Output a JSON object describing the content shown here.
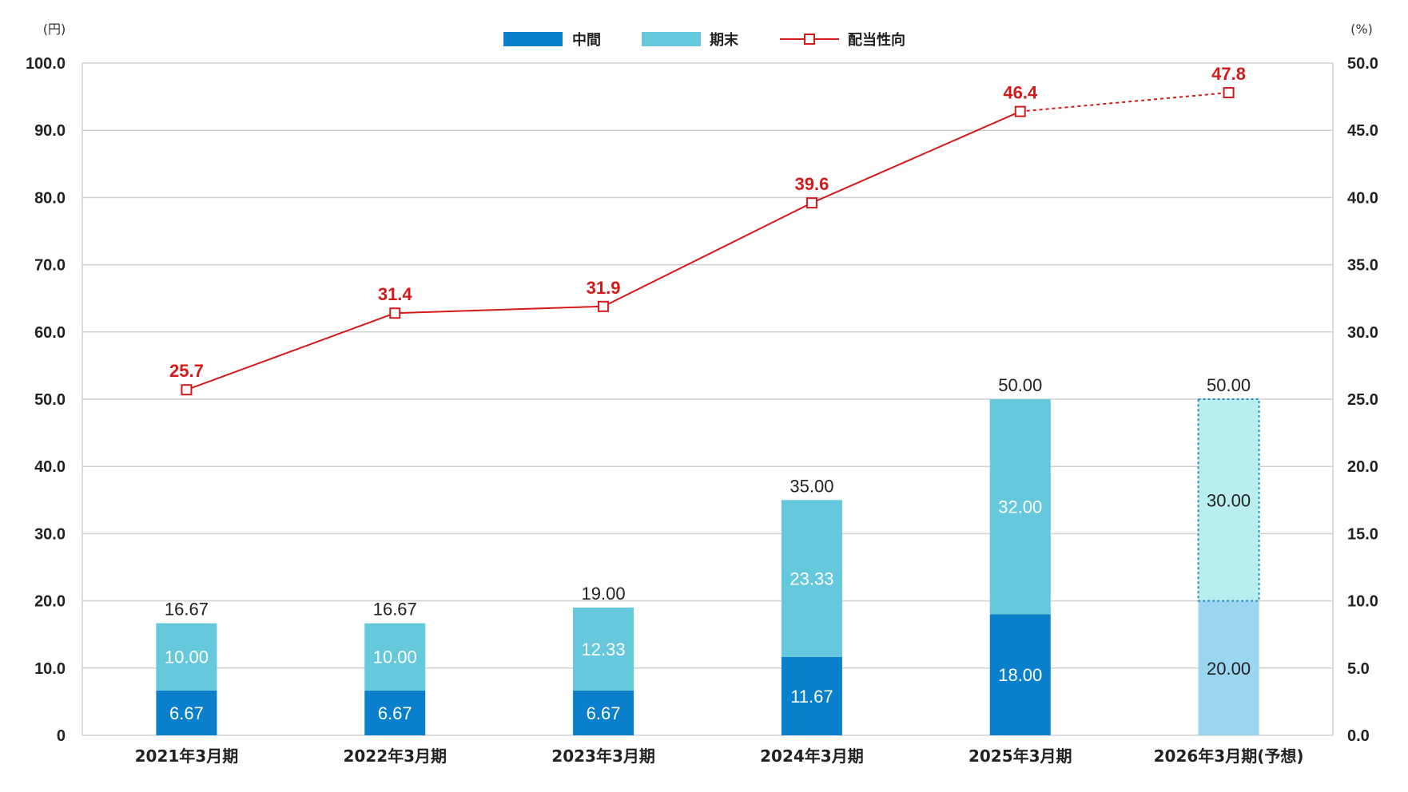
{
  "chart_data": {
    "type": "bar",
    "categories": [
      "2021年3月期",
      "2022年3月期",
      "2023年3月期",
      "2024年3月期",
      "2025年3月期",
      "2026年3月期(予想)"
    ],
    "series": [
      {
        "name": "中間",
        "type": "bar",
        "stacked": true,
        "values": [
          6.67,
          6.67,
          6.67,
          11.67,
          18.0,
          20.0
        ],
        "labels": [
          "6.67",
          "6.67",
          "6.67",
          "11.67",
          "18.00",
          "20.00"
        ]
      },
      {
        "name": "期末",
        "type": "bar",
        "stacked": true,
        "values": [
          10.0,
          10.0,
          12.33,
          23.33,
          32.0,
          30.0
        ],
        "labels": [
          "10.00",
          "10.00",
          "12.33",
          "23.33",
          "32.00",
          "30.00"
        ]
      },
      {
        "name": "配当性向",
        "type": "line",
        "axis": "right",
        "values": [
          25.7,
          31.4,
          31.9,
          39.6,
          46.4,
          47.8
        ],
        "labels": [
          "25.7",
          "31.4",
          "31.9",
          "39.6",
          "46.4",
          "47.8"
        ]
      }
    ],
    "totals": [
      "16.67",
      "16.67",
      "19.00",
      "35.00",
      "50.00",
      "50.00"
    ],
    "forecast_index": 5,
    "left_axis": {
      "unit": "(円)",
      "ylim": [
        0,
        100
      ],
      "ticks": [
        "0",
        "10.0",
        "20.0",
        "30.0",
        "40.0",
        "50.0",
        "60.0",
        "70.0",
        "80.0",
        "90.0",
        "100.0"
      ]
    },
    "right_axis": {
      "unit": "(%)",
      "ylim": [
        0,
        50
      ],
      "ticks": [
        "0.0",
        "5.0",
        "10.0",
        "15.0",
        "20.0",
        "25.0",
        "30.0",
        "35.0",
        "40.0",
        "45.0",
        "50.0"
      ]
    },
    "grid": true,
    "legend_position": "top-center",
    "colors": {
      "interim": "#0a7fcc",
      "final": "#66c8dc",
      "interim_forecast": "#9ad6f0",
      "final_forecast": "#b8eeee",
      "ratio": "#d21a1a",
      "grid": "#d0d0d0"
    }
  }
}
